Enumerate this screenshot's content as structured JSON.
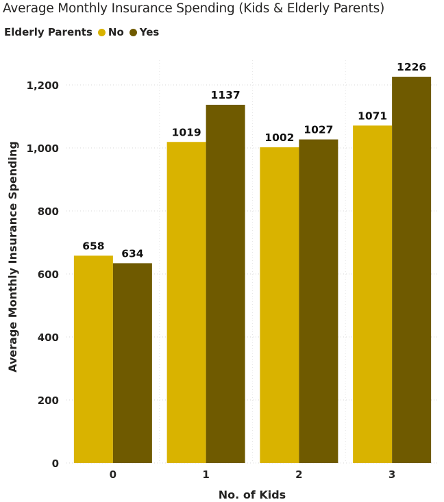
{
  "chart_data": {
    "type": "bar",
    "title": "Average Monthly Insurance Spending (Kids & Elderly Parents)",
    "xlabel": "No. of Kids",
    "ylabel": "Average Monthly Insurance Spending",
    "categories": [
      "0",
      "1",
      "2",
      "3"
    ],
    "legend": {
      "title": "Elderly Parents",
      "placement": "top-left"
    },
    "series": [
      {
        "name": "No",
        "color": "#D9B300",
        "values": [
          658,
          1019,
          1002,
          1071
        ]
      },
      {
        "name": "Yes",
        "color": "#6F5A00",
        "values": [
          634,
          1137,
          1027,
          1226
        ]
      }
    ],
    "ylim": [
      0,
      1300
    ],
    "yticks": [
      0,
      200,
      400,
      600,
      800,
      1000,
      1200
    ],
    "ytick_labels": [
      "0",
      "200",
      "400",
      "600",
      "800",
      "1,000",
      "1,200"
    ],
    "grid": true
  }
}
